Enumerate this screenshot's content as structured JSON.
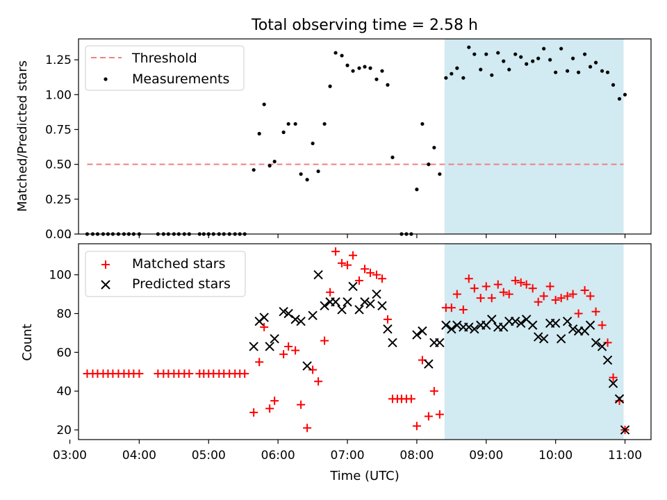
{
  "figure": {
    "title": "Total observing time = 2.58 h"
  },
  "chart_data": [
    {
      "type": "scatter",
      "ylabel": "Matched/Predicted stars",
      "xlim": [
        3.125,
        11.375
      ],
      "ylim": [
        0.0,
        1.4
      ],
      "yticks": [
        0.0,
        0.25,
        0.5,
        0.75,
        1.0,
        1.25
      ],
      "ytick_labels": [
        "0.00",
        "0.25",
        "0.50",
        "0.75",
        "1.00",
        "1.25"
      ],
      "legend": {
        "placement": "top-left"
      },
      "highlight_span": {
        "x_start": 8.4,
        "x_end": 10.98,
        "color": "#add8e6"
      },
      "threshold": {
        "name": "Threshold",
        "value": 0.5,
        "x_range": [
          3.25,
          10.98
        ],
        "color": "#f08080",
        "style": "dashed"
      },
      "series": [
        {
          "name": "Measurements",
          "marker": "dot",
          "color": "#000000",
          "points": [
            [
              3.25,
              0
            ],
            [
              3.33,
              0
            ],
            [
              3.4,
              0
            ],
            [
              3.48,
              0
            ],
            [
              3.55,
              0
            ],
            [
              3.62,
              0
            ],
            [
              3.7,
              0
            ],
            [
              3.78,
              0
            ],
            [
              3.85,
              0
            ],
            [
              3.92,
              0
            ],
            [
              4.0,
              0
            ],
            [
              4.27,
              0
            ],
            [
              4.35,
              0
            ],
            [
              4.42,
              0
            ],
            [
              4.5,
              0
            ],
            [
              4.57,
              0
            ],
            [
              4.65,
              0
            ],
            [
              4.72,
              0
            ],
            [
              4.87,
              0
            ],
            [
              4.93,
              0
            ],
            [
              5.0,
              0
            ],
            [
              5.07,
              0
            ],
            [
              5.15,
              0
            ],
            [
              5.22,
              0
            ],
            [
              5.3,
              0
            ],
            [
              5.38,
              0
            ],
            [
              5.45,
              0
            ],
            [
              5.52,
              0
            ],
            [
              5.65,
              0.46
            ],
            [
              5.73,
              0.72
            ],
            [
              5.8,
              0.93
            ],
            [
              5.88,
              0.49
            ],
            [
              5.95,
              0.52
            ],
            [
              6.08,
              0.73
            ],
            [
              6.15,
              0.79
            ],
            [
              6.25,
              0.79
            ],
            [
              6.33,
              0.43
            ],
            [
              6.42,
              0.39
            ],
            [
              6.5,
              0.65
            ],
            [
              6.58,
              0.45
            ],
            [
              6.67,
              0.79
            ],
            [
              6.75,
              1.06
            ],
            [
              6.83,
              1.3
            ],
            [
              6.92,
              1.28
            ],
            [
              7.0,
              1.21
            ],
            [
              7.08,
              1.17
            ],
            [
              7.17,
              1.19
            ],
            [
              7.25,
              1.2
            ],
            [
              7.33,
              1.19
            ],
            [
              7.42,
              1.11
            ],
            [
              7.5,
              1.17
            ],
            [
              7.58,
              1.07
            ],
            [
              7.65,
              0.55
            ],
            [
              7.78,
              0
            ],
            [
              7.85,
              0
            ],
            [
              7.92,
              0
            ],
            [
              8.0,
              0.32
            ],
            [
              8.08,
              0.79
            ],
            [
              8.17,
              0.5
            ],
            [
              8.25,
              0.62
            ],
            [
              8.33,
              0.43
            ],
            [
              8.42,
              1.12
            ],
            [
              8.5,
              1.15
            ],
            [
              8.58,
              1.19
            ],
            [
              8.67,
              1.12
            ],
            [
              8.75,
              1.34
            ],
            [
              8.83,
              1.29
            ],
            [
              8.92,
              1.18
            ],
            [
              9.0,
              1.29
            ],
            [
              9.08,
              1.14
            ],
            [
              9.17,
              1.3
            ],
            [
              9.25,
              1.24
            ],
            [
              9.33,
              1.18
            ],
            [
              9.42,
              1.29
            ],
            [
              9.5,
              1.27
            ],
            [
              9.58,
              1.22
            ],
            [
              9.67,
              1.24
            ],
            [
              9.75,
              1.26
            ],
            [
              9.83,
              1.33
            ],
            [
              9.92,
              1.25
            ],
            [
              10.0,
              1.16
            ],
            [
              10.08,
              1.33
            ],
            [
              10.17,
              1.17
            ],
            [
              10.25,
              1.26
            ],
            [
              10.33,
              1.16
            ],
            [
              10.42,
              1.29
            ],
            [
              10.5,
              1.2
            ],
            [
              10.58,
              1.23
            ],
            [
              10.67,
              1.17
            ],
            [
              10.75,
              1.16
            ],
            [
              10.83,
              1.07
            ],
            [
              10.92,
              0.97
            ],
            [
              11.0,
              1.0
            ]
          ]
        }
      ]
    },
    {
      "type": "scatter",
      "xlabel": "Time (UTC)",
      "ylabel": "Count",
      "xlim": [
        3.125,
        11.375
      ],
      "ylim": [
        15,
        116
      ],
      "yticks": [
        20,
        40,
        60,
        80,
        100
      ],
      "ytick_labels": [
        "20",
        "40",
        "60",
        "80",
        "100"
      ],
      "xticks": [
        3,
        4,
        5,
        6,
        7,
        8,
        9,
        10,
        11
      ],
      "xtick_labels": [
        "03:00",
        "04:00",
        "05:00",
        "06:00",
        "07:00",
        "08:00",
        "09:00",
        "10:00",
        "11:00"
      ],
      "legend": {
        "placement": "top-left"
      },
      "highlight_span": {
        "x_start": 8.4,
        "x_end": 10.98,
        "color": "#add8e6"
      },
      "series": [
        {
          "name": "Matched stars",
          "marker": "plus",
          "color": "#ff0000",
          "points": [
            [
              3.25,
              49
            ],
            [
              3.33,
              49
            ],
            [
              3.4,
              49
            ],
            [
              3.48,
              49
            ],
            [
              3.55,
              49
            ],
            [
              3.62,
              49
            ],
            [
              3.7,
              49
            ],
            [
              3.78,
              49
            ],
            [
              3.85,
              49
            ],
            [
              3.92,
              49
            ],
            [
              4.0,
              49
            ],
            [
              4.27,
              49
            ],
            [
              4.35,
              49
            ],
            [
              4.42,
              49
            ],
            [
              4.5,
              49
            ],
            [
              4.57,
              49
            ],
            [
              4.65,
              49
            ],
            [
              4.72,
              49
            ],
            [
              4.87,
              49
            ],
            [
              4.93,
              49
            ],
            [
              5.0,
              49
            ],
            [
              5.07,
              49
            ],
            [
              5.15,
              49
            ],
            [
              5.22,
              49
            ],
            [
              5.3,
              49
            ],
            [
              5.38,
              49
            ],
            [
              5.45,
              49
            ],
            [
              5.52,
              49
            ],
            [
              5.65,
              29
            ],
            [
              5.73,
              55
            ],
            [
              5.8,
              73
            ],
            [
              5.88,
              31
            ],
            [
              5.95,
              35
            ],
            [
              6.08,
              59
            ],
            [
              6.15,
              63
            ],
            [
              6.25,
              61
            ],
            [
              6.33,
              33
            ],
            [
              6.42,
              21
            ],
            [
              6.5,
              51
            ],
            [
              6.58,
              45
            ],
            [
              6.67,
              66
            ],
            [
              6.75,
              91
            ],
            [
              6.83,
              112
            ],
            [
              6.92,
              106
            ],
            [
              7.0,
              105
            ],
            [
              7.08,
              110
            ],
            [
              7.17,
              97
            ],
            [
              7.25,
              103
            ],
            [
              7.33,
              101
            ],
            [
              7.42,
              100
            ],
            [
              7.5,
              98
            ],
            [
              7.58,
              77
            ],
            [
              7.65,
              36
            ],
            [
              7.72,
              36
            ],
            [
              7.78,
              36
            ],
            [
              7.85,
              36
            ],
            [
              7.92,
              36
            ],
            [
              8.0,
              22
            ],
            [
              8.08,
              56
            ],
            [
              8.17,
              27
            ],
            [
              8.25,
              40
            ],
            [
              8.33,
              28
            ],
            [
              8.42,
              83
            ],
            [
              8.5,
              83
            ],
            [
              8.58,
              90
            ],
            [
              8.67,
              82
            ],
            [
              8.75,
              98
            ],
            [
              8.83,
              93
            ],
            [
              8.92,
              88
            ],
            [
              9.0,
              94
            ],
            [
              9.08,
              88
            ],
            [
              9.17,
              95
            ],
            [
              9.25,
              91
            ],
            [
              9.33,
              90
            ],
            [
              9.42,
              97
            ],
            [
              9.5,
              96
            ],
            [
              9.58,
              95
            ],
            [
              9.67,
              93
            ],
            [
              9.75,
              86
            ],
            [
              9.83,
              89
            ],
            [
              9.92,
              94
            ],
            [
              10.0,
              87
            ],
            [
              10.08,
              88
            ],
            [
              10.17,
              89
            ],
            [
              10.25,
              90
            ],
            [
              10.33,
              80
            ],
            [
              10.42,
              92
            ],
            [
              10.5,
              89
            ],
            [
              10.58,
              81
            ],
            [
              10.67,
              74
            ],
            [
              10.75,
              65
            ],
            [
              10.83,
              47
            ],
            [
              10.92,
              35
            ],
            [
              11.0,
              20
            ]
          ]
        },
        {
          "name": "Predicted stars",
          "marker": "x",
          "color": "#000000",
          "points": [
            [
              5.65,
              63
            ],
            [
              5.73,
              76
            ],
            [
              5.8,
              78
            ],
            [
              5.88,
              63
            ],
            [
              5.95,
              67
            ],
            [
              6.08,
              81
            ],
            [
              6.15,
              80
            ],
            [
              6.25,
              77
            ],
            [
              6.33,
              76
            ],
            [
              6.42,
              53
            ],
            [
              6.5,
              79
            ],
            [
              6.58,
              100
            ],
            [
              6.67,
              84
            ],
            [
              6.75,
              86
            ],
            [
              6.83,
              86
            ],
            [
              6.92,
              82
            ],
            [
              7.0,
              86
            ],
            [
              7.08,
              94
            ],
            [
              7.17,
              82
            ],
            [
              7.25,
              86
            ],
            [
              7.33,
              85
            ],
            [
              7.42,
              90
            ],
            [
              7.5,
              84
            ],
            [
              7.58,
              72
            ],
            [
              7.65,
              65
            ],
            [
              8.0,
              69
            ],
            [
              8.08,
              71
            ],
            [
              8.17,
              54
            ],
            [
              8.25,
              65
            ],
            [
              8.33,
              65
            ],
            [
              8.42,
              74
            ],
            [
              8.5,
              72
            ],
            [
              8.58,
              74
            ],
            [
              8.67,
              73
            ],
            [
              8.75,
              73
            ],
            [
              8.83,
              72
            ],
            [
              8.92,
              74
            ],
            [
              9.0,
              74
            ],
            [
              9.08,
              77
            ],
            [
              9.17,
              73
            ],
            [
              9.25,
              73
            ],
            [
              9.33,
              76
            ],
            [
              9.42,
              76
            ],
            [
              9.5,
              75
            ],
            [
              9.58,
              77
            ],
            [
              9.67,
              74
            ],
            [
              9.75,
              68
            ],
            [
              9.83,
              67
            ],
            [
              9.92,
              75
            ],
            [
              10.0,
              75
            ],
            [
              10.08,
              67
            ],
            [
              10.17,
              76
            ],
            [
              10.25,
              72
            ],
            [
              10.33,
              71
            ],
            [
              10.42,
              71
            ],
            [
              10.5,
              74
            ],
            [
              10.58,
              65
            ],
            [
              10.67,
              63
            ],
            [
              10.75,
              56
            ],
            [
              10.83,
              44
            ],
            [
              10.92,
              36
            ],
            [
              11.0,
              20
            ]
          ]
        }
      ]
    }
  ]
}
